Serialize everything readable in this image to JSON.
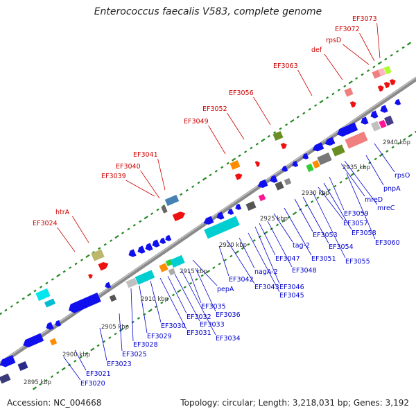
{
  "header": {
    "title": "Enterococcus faecalis V583, complete genome"
  },
  "footer": {
    "accession": "Accession: NC_004668",
    "summary": "Topology: circular; Length: 3,218,031 bp; Genes: 3,192"
  },
  "colors": {
    "backbone": "#888888",
    "tick": "#228822",
    "top_label": "#cc0000",
    "bottom_label": "#0000cc",
    "leader_top": "#cc0000",
    "leader_bottom": "#0000cc"
  },
  "scale_labels": [
    "2895 kbp",
    "2900 kbp",
    "2905 kbp",
    "2910 kbp",
    "2915 kbp",
    "2920 kbp",
    "2925 kbp",
    "2930 kbp",
    "2935 kbp",
    "2940 kbp"
  ],
  "top_labels": [
    "EF3024",
    "htrA",
    "EF3039",
    "EF3040",
    "EF3041",
    "EF3049",
    "EF3052",
    "EF3056",
    "EF3063",
    "def",
    "rpsD",
    "EF3072",
    "EF3073"
  ],
  "bottom_labels": [
    "EF3020",
    "EF3021",
    "EF3023",
    "EF3025",
    "EF3028",
    "EF3029",
    "EF3030",
    "EF3031",
    "EF3032",
    "EF3033",
    "EF3034",
    "EF3035",
    "EF3036",
    "pepA",
    "EF3042",
    "EF3043",
    "nagA-2",
    "EF3045",
    "EF3046",
    "EF3047",
    "EF3048",
    "tag-2",
    "EF3051",
    "EF3053",
    "EF3054",
    "EF3055",
    "EF3057",
    "EF3058",
    "EF3059",
    "mreD",
    "mreC",
    "EF3060",
    "pnpA",
    "rpsO"
  ]
}
